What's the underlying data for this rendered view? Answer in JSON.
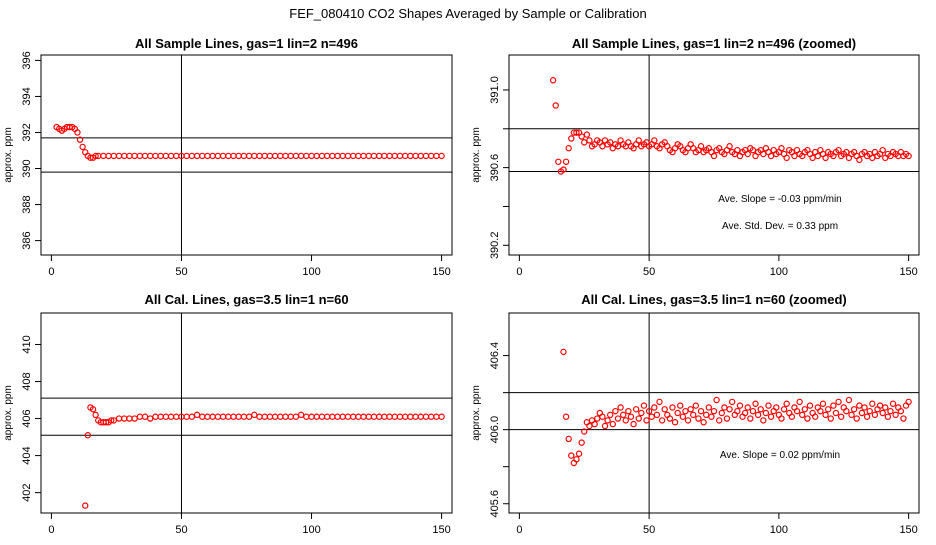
{
  "title": "FEF_080410  CO2 Shapes Averaged by Sample or Calibration",
  "colors": {
    "points": "#ff0000",
    "lines": "#000000",
    "background": "#ffffff"
  },
  "chart_data": [
    {
      "type": "scatter",
      "title": "All Sample Lines, gas=1 lin=2 n=496",
      "xlabel": "",
      "ylabel": "approx. ppm",
      "xlim": [
        -4,
        154
      ],
      "ylim": [
        385.2,
        396.3
      ],
      "xticks": [
        0,
        50,
        100,
        150
      ],
      "xtick_labels": [
        "0",
        "50",
        "100",
        "150"
      ],
      "yticks": [
        386,
        388,
        390,
        392,
        394,
        396
      ],
      "ytick_labels": [
        "386",
        "388",
        "390",
        "392",
        "394",
        "396"
      ],
      "vline": 50,
      "hlines": [
        389.8,
        391.7
      ],
      "annotations": [],
      "points": {
        "x": [
          2,
          3,
          4,
          5,
          6,
          7,
          8,
          9,
          10,
          11,
          12,
          13,
          14,
          15,
          16,
          17,
          18,
          20,
          22,
          24,
          26,
          28,
          30,
          32,
          34,
          36,
          38,
          40,
          42,
          44,
          46,
          48,
          50,
          52,
          54,
          56,
          58,
          60,
          62,
          64,
          66,
          68,
          70,
          72,
          74,
          76,
          78,
          80,
          82,
          84,
          86,
          88,
          90,
          92,
          94,
          96,
          98,
          100,
          102,
          104,
          106,
          108,
          110,
          112,
          114,
          116,
          118,
          120,
          122,
          124,
          126,
          128,
          130,
          132,
          134,
          136,
          138,
          140,
          142,
          144,
          146,
          148,
          150
        ],
        "y": [
          392.3,
          392.2,
          392.1,
          392.2,
          392.3,
          392.3,
          392.3,
          392.2,
          392.0,
          391.6,
          391.2,
          390.9,
          390.7,
          390.6,
          390.6,
          390.7,
          390.7,
          390.7,
          390.7,
          390.7,
          390.7,
          390.7,
          390.7,
          390.7,
          390.7,
          390.7,
          390.7,
          390.7,
          390.7,
          390.7,
          390.7,
          390.7,
          390.7,
          390.7,
          390.7,
          390.7,
          390.7,
          390.7,
          390.7,
          390.7,
          390.7,
          390.7,
          390.7,
          390.7,
          390.7,
          390.7,
          390.7,
          390.7,
          390.7,
          390.7,
          390.7,
          390.7,
          390.7,
          390.7,
          390.7,
          390.7,
          390.7,
          390.7,
          390.7,
          390.7,
          390.7,
          390.7,
          390.7,
          390.7,
          390.7,
          390.7,
          390.7,
          390.7,
          390.7,
          390.7,
          390.7,
          390.7,
          390.7,
          390.7,
          390.7,
          390.7,
          390.7,
          390.7,
          390.7,
          390.7,
          390.7,
          390.7,
          390.7
        ]
      }
    },
    {
      "type": "scatter",
      "title": "All Sample Lines, gas=1 lin=2 n=496 (zoomed)",
      "xlabel": "",
      "ylabel": "approx. ppm",
      "xlim": [
        -4,
        154
      ],
      "ylim": [
        390.15,
        391.18
      ],
      "xticks": [
        0,
        50,
        100,
        150
      ],
      "xtick_labels": [
        "0",
        "50",
        "100",
        "150"
      ],
      "yticks": [
        390.2,
        390.6,
        391.0
      ],
      "ytick_labels": [
        "390.2",
        "390.6",
        "391.0"
      ],
      "minor_yticks": [
        390.4,
        390.8
      ],
      "vline": 50,
      "hlines": [
        390.58,
        390.8
      ],
      "annotations": [
        "Ave. Slope =  -0.03  ppm/min",
        "Ave. Std. Dev. =  0.33  ppm"
      ],
      "points": {
        "x": [
          13,
          14,
          15,
          16,
          17,
          18,
          19,
          20,
          21,
          22,
          23,
          24,
          25,
          26,
          27,
          28,
          29,
          30,
          31,
          32,
          33,
          34,
          35,
          36,
          37,
          38,
          39,
          40,
          41,
          42,
          43,
          44,
          45,
          46,
          47,
          48,
          49,
          50,
          51,
          52,
          53,
          54,
          55,
          56,
          57,
          58,
          59,
          60,
          61,
          62,
          63,
          64,
          65,
          66,
          67,
          68,
          69,
          70,
          71,
          72,
          73,
          74,
          75,
          76,
          77,
          78,
          79,
          80,
          81,
          82,
          83,
          84,
          85,
          86,
          87,
          88,
          89,
          90,
          91,
          92,
          93,
          94,
          95,
          96,
          97,
          98,
          99,
          100,
          101,
          102,
          103,
          104,
          105,
          106,
          107,
          108,
          109,
          110,
          111,
          112,
          113,
          114,
          115,
          116,
          117,
          118,
          119,
          120,
          121,
          122,
          123,
          124,
          125,
          126,
          127,
          128,
          129,
          130,
          131,
          132,
          133,
          134,
          135,
          136,
          137,
          138,
          139,
          140,
          141,
          142,
          143,
          144,
          145,
          146,
          147,
          148,
          149,
          150
        ],
        "y": [
          391.05,
          390.92,
          390.63,
          390.58,
          390.59,
          390.63,
          390.7,
          390.75,
          390.78,
          390.78,
          390.78,
          390.76,
          390.73,
          390.77,
          390.74,
          390.71,
          390.72,
          390.74,
          390.73,
          390.71,
          390.74,
          390.72,
          390.73,
          390.7,
          390.72,
          390.71,
          390.74,
          390.72,
          390.71,
          390.73,
          390.71,
          390.7,
          390.72,
          390.74,
          390.71,
          390.72,
          390.73,
          390.71,
          390.72,
          390.74,
          390.71,
          390.7,
          390.72,
          390.73,
          390.71,
          390.69,
          390.68,
          390.7,
          390.72,
          390.71,
          390.69,
          390.68,
          390.7,
          390.72,
          390.7,
          390.68,
          390.69,
          390.71,
          390.68,
          390.69,
          390.7,
          390.68,
          390.66,
          390.69,
          390.7,
          390.68,
          390.67,
          390.69,
          390.71,
          390.68,
          390.67,
          390.69,
          390.66,
          390.68,
          390.69,
          390.67,
          390.7,
          390.69,
          390.66,
          390.68,
          390.69,
          390.67,
          390.7,
          390.68,
          390.66,
          390.69,
          390.67,
          390.68,
          390.7,
          390.67,
          390.65,
          390.69,
          390.68,
          390.66,
          390.69,
          390.67,
          390.66,
          390.68,
          390.69,
          390.67,
          390.65,
          390.68,
          390.66,
          390.69,
          390.67,
          390.65,
          390.68,
          390.67,
          390.66,
          390.68,
          390.69,
          390.66,
          390.67,
          390.68,
          390.65,
          390.67,
          390.68,
          390.66,
          390.64,
          390.67,
          390.68,
          390.66,
          390.67,
          390.65,
          390.68,
          390.66,
          390.67,
          390.69,
          390.65,
          390.67,
          390.66,
          390.68,
          390.67,
          390.66,
          390.68,
          390.66,
          390.67,
          390.66
        ]
      }
    },
    {
      "type": "scatter",
      "title": "All Cal. Lines, gas=3.5 lin=1 n=60",
      "xlabel": "",
      "ylabel": "approx. ppm",
      "xlim": [
        -4,
        154
      ],
      "ylim": [
        400.9,
        411.7
      ],
      "xticks": [
        0,
        50,
        100,
        150
      ],
      "xtick_labels": [
        "0",
        "50",
        "100",
        "150"
      ],
      "yticks": [
        402,
        404,
        406,
        408,
        410
      ],
      "ytick_labels": [
        "402",
        "404",
        "406",
        "408",
        "410"
      ],
      "vline": 50,
      "hlines": [
        405.1,
        407.1
      ],
      "annotations": [],
      "points": {
        "x": [
          13,
          14,
          15,
          16,
          17,
          18,
          19,
          20,
          21,
          22,
          23,
          24,
          26,
          28,
          30,
          32,
          34,
          36,
          38,
          40,
          42,
          44,
          46,
          48,
          50,
          52,
          54,
          56,
          58,
          60,
          62,
          64,
          66,
          68,
          70,
          72,
          74,
          76,
          78,
          80,
          82,
          84,
          86,
          88,
          90,
          92,
          94,
          96,
          98,
          100,
          102,
          104,
          106,
          108,
          110,
          112,
          114,
          116,
          118,
          120,
          122,
          124,
          126,
          128,
          130,
          132,
          134,
          136,
          138,
          140,
          142,
          144,
          146,
          148,
          150
        ],
        "y": [
          401.3,
          405.1,
          406.6,
          406.5,
          406.2,
          405.9,
          405.8,
          405.8,
          405.8,
          405.8,
          405.9,
          405.9,
          406.0,
          406.0,
          406.0,
          406.0,
          406.1,
          406.1,
          406.0,
          406.1,
          406.1,
          406.1,
          406.1,
          406.1,
          406.1,
          406.1,
          406.1,
          406.2,
          406.1,
          406.1,
          406.1,
          406.1,
          406.1,
          406.1,
          406.1,
          406.1,
          406.1,
          406.1,
          406.2,
          406.1,
          406.1,
          406.1,
          406.1,
          406.1,
          406.1,
          406.1,
          406.1,
          406.2,
          406.1,
          406.1,
          406.1,
          406.1,
          406.1,
          406.1,
          406.1,
          406.1,
          406.1,
          406.1,
          406.1,
          406.1,
          406.1,
          406.1,
          406.1,
          406.1,
          406.1,
          406.1,
          406.1,
          406.1,
          406.1,
          406.1,
          406.1,
          406.1,
          406.1,
          406.1,
          406.1
        ]
      }
    },
    {
      "type": "scatter",
      "title": "All Cal. Lines, gas=3.5 lin=1 n=60 (zoomed)",
      "xlabel": "",
      "ylabel": "approx. ppm",
      "xlim": [
        -4,
        154
      ],
      "ylim": [
        405.55,
        406.63
      ],
      "xticks": [
        0,
        50,
        100,
        150
      ],
      "xtick_labels": [
        "0",
        "50",
        "100",
        "150"
      ],
      "yticks": [
        405.6,
        406.0,
        406.4
      ],
      "ytick_labels": [
        "405.6",
        "406.0",
        "406.4"
      ],
      "minor_yticks": [
        405.8,
        406.2
      ],
      "vline": 50,
      "hlines": [
        406.0,
        406.2
      ],
      "annotations": [
        "Ave. Slope =  0.02  ppm/min"
      ],
      "points": {
        "x": [
          17,
          18,
          19,
          20,
          21,
          22,
          23,
          24,
          25,
          26,
          27,
          28,
          29,
          30,
          31,
          32,
          33,
          34,
          35,
          36,
          37,
          38,
          39,
          40,
          41,
          42,
          43,
          44,
          45,
          46,
          47,
          48,
          49,
          50,
          51,
          52,
          53,
          54,
          55,
          56,
          57,
          58,
          59,
          60,
          61,
          62,
          63,
          64,
          65,
          66,
          67,
          68,
          69,
          70,
          71,
          72,
          73,
          74,
          75,
          76,
          77,
          78,
          79,
          80,
          81,
          82,
          83,
          84,
          85,
          86,
          87,
          88,
          89,
          90,
          91,
          92,
          93,
          94,
          95,
          96,
          97,
          98,
          99,
          100,
          101,
          102,
          103,
          104,
          105,
          106,
          107,
          108,
          109,
          110,
          111,
          112,
          113,
          114,
          115,
          116,
          117,
          118,
          119,
          120,
          121,
          122,
          123,
          124,
          125,
          126,
          127,
          128,
          129,
          130,
          131,
          132,
          133,
          134,
          135,
          136,
          137,
          138,
          139,
          140,
          141,
          142,
          143,
          144,
          145,
          146,
          147,
          148,
          149,
          150
        ],
        "y": [
          406.42,
          406.07,
          405.95,
          405.86,
          405.82,
          405.84,
          405.87,
          405.93,
          405.99,
          406.04,
          406.02,
          406.05,
          406.03,
          406.06,
          406.09,
          406.07,
          406.02,
          406.05,
          406.08,
          406.03,
          406.1,
          406.06,
          406.12,
          406.08,
          406.05,
          406.1,
          406.07,
          406.03,
          406.11,
          406.06,
          406.09,
          406.13,
          406.05,
          406.1,
          406.07,
          406.12,
          406.08,
          406.15,
          406.05,
          406.11,
          406.08,
          406.06,
          406.12,
          406.04,
          406.09,
          406.13,
          406.07,
          406.1,
          406.05,
          406.11,
          406.08,
          406.13,
          406.06,
          406.1,
          406.04,
          406.08,
          406.12,
          406.07,
          406.1,
          406.16,
          406.05,
          406.09,
          406.12,
          406.06,
          406.11,
          406.15,
          406.08,
          406.1,
          406.13,
          406.07,
          406.09,
          406.12,
          406.06,
          406.1,
          406.14,
          406.08,
          406.11,
          406.05,
          406.09,
          406.13,
          406.07,
          406.1,
          406.12,
          406.08,
          406.06,
          406.11,
          406.14,
          406.09,
          406.07,
          406.12,
          406.1,
          406.15,
          406.08,
          406.11,
          406.06,
          406.13,
          406.09,
          406.07,
          406.12,
          406.1,
          406.14,
          406.08,
          406.11,
          406.06,
          406.13,
          406.09,
          406.15,
          406.07,
          406.12,
          406.1,
          406.16,
          406.08,
          406.11,
          406.06,
          406.13,
          406.09,
          406.12,
          406.07,
          406.1,
          406.14,
          406.08,
          406.11,
          406.13,
          406.09,
          406.12,
          406.07,
          406.1,
          406.14,
          406.08,
          406.12,
          406.1,
          406.06,
          406.13,
          406.15
        ]
      }
    }
  ]
}
